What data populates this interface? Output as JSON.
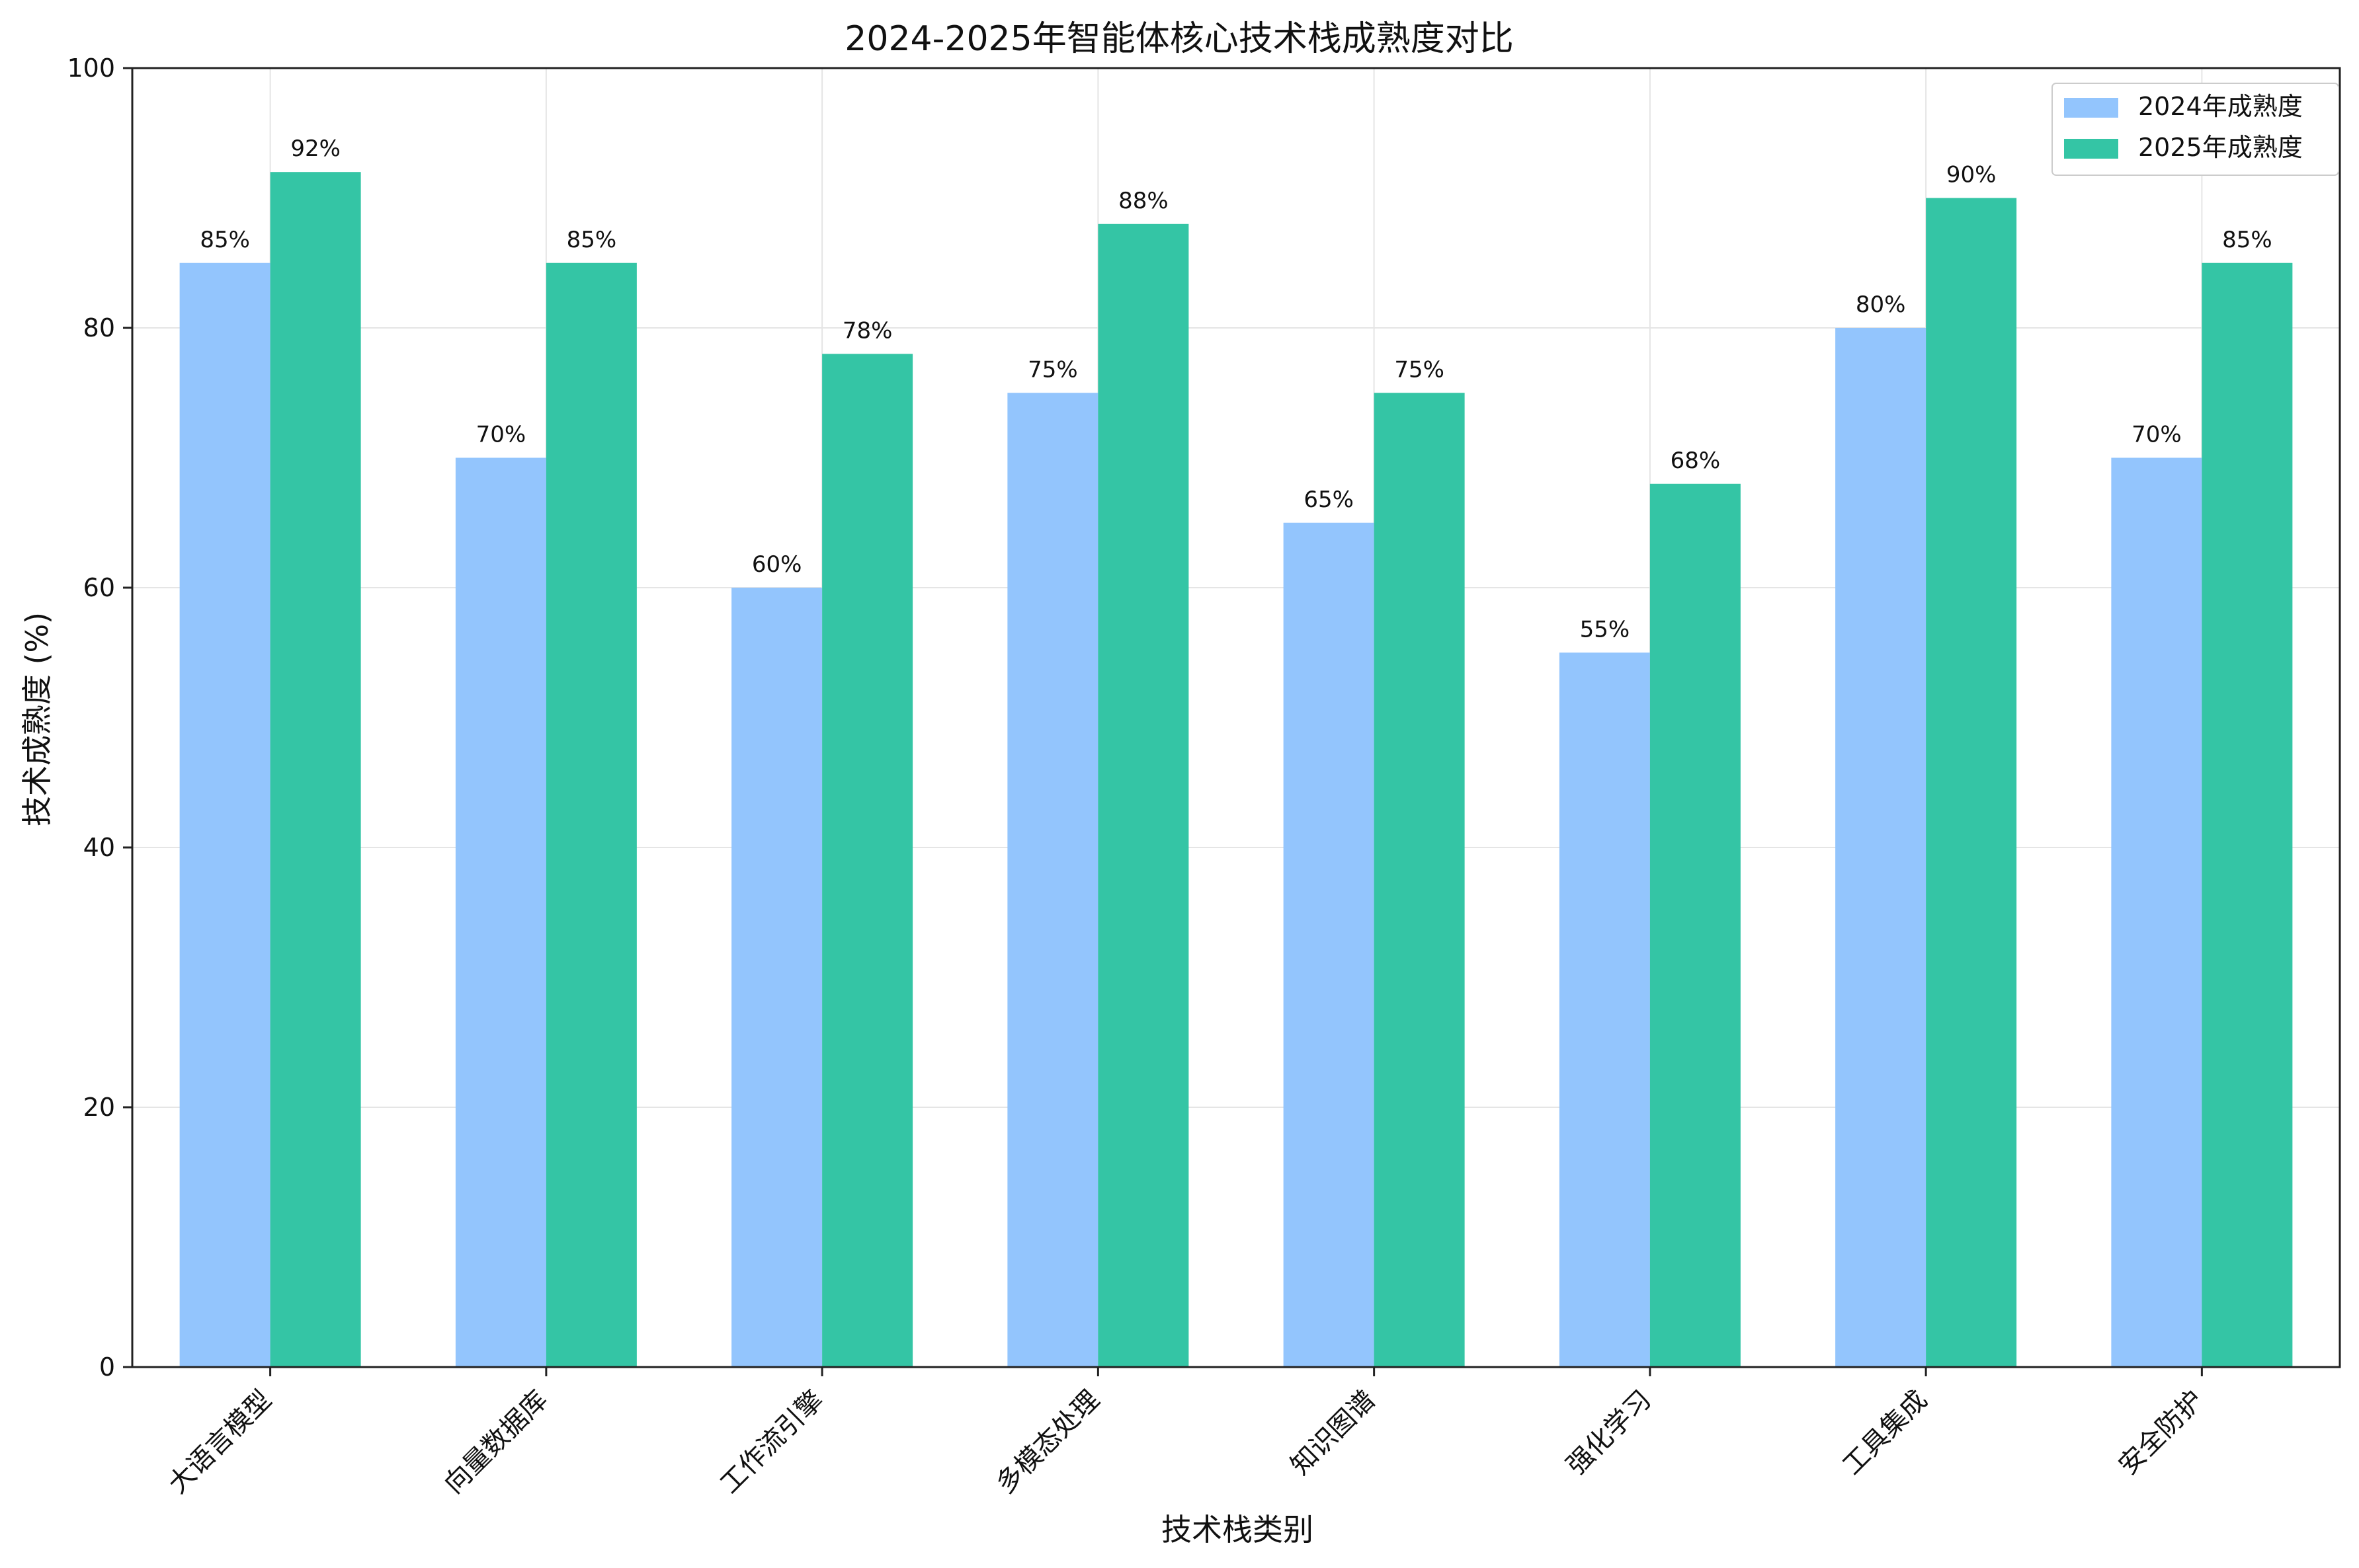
{
  "chart_data": {
    "type": "bar",
    "title": "2024-2025年智能体核心技术栈成熟度对比",
    "xlabel": "技术栈类别",
    "ylabel": "技术成熟度 (%)",
    "ylim": [
      0,
      100
    ],
    "yticks": [
      0,
      20,
      40,
      60,
      80,
      100
    ],
    "grid": true,
    "legend_position": "top-right",
    "categories": [
      "大语言模型",
      "向量数据库",
      "工作流引擎",
      "多模态处理",
      "知识图谱",
      "强化学习",
      "工具集成",
      "安全防护"
    ],
    "series": [
      {
        "name": "2024年成熟度",
        "color": "#93c5fd",
        "values": [
          85,
          70,
          60,
          75,
          65,
          55,
          80,
          70
        ],
        "labels": [
          "85%",
          "70%",
          "60%",
          "75%",
          "65%",
          "55%",
          "80%",
          "70%"
        ]
      },
      {
        "name": "2025年成熟度",
        "color": "#34c5a5",
        "values": [
          92,
          85,
          78,
          88,
          75,
          68,
          90,
          85
        ],
        "labels": [
          "92%",
          "85%",
          "78%",
          "88%",
          "75%",
          "68%",
          "90%",
          "85%"
        ]
      }
    ]
  }
}
